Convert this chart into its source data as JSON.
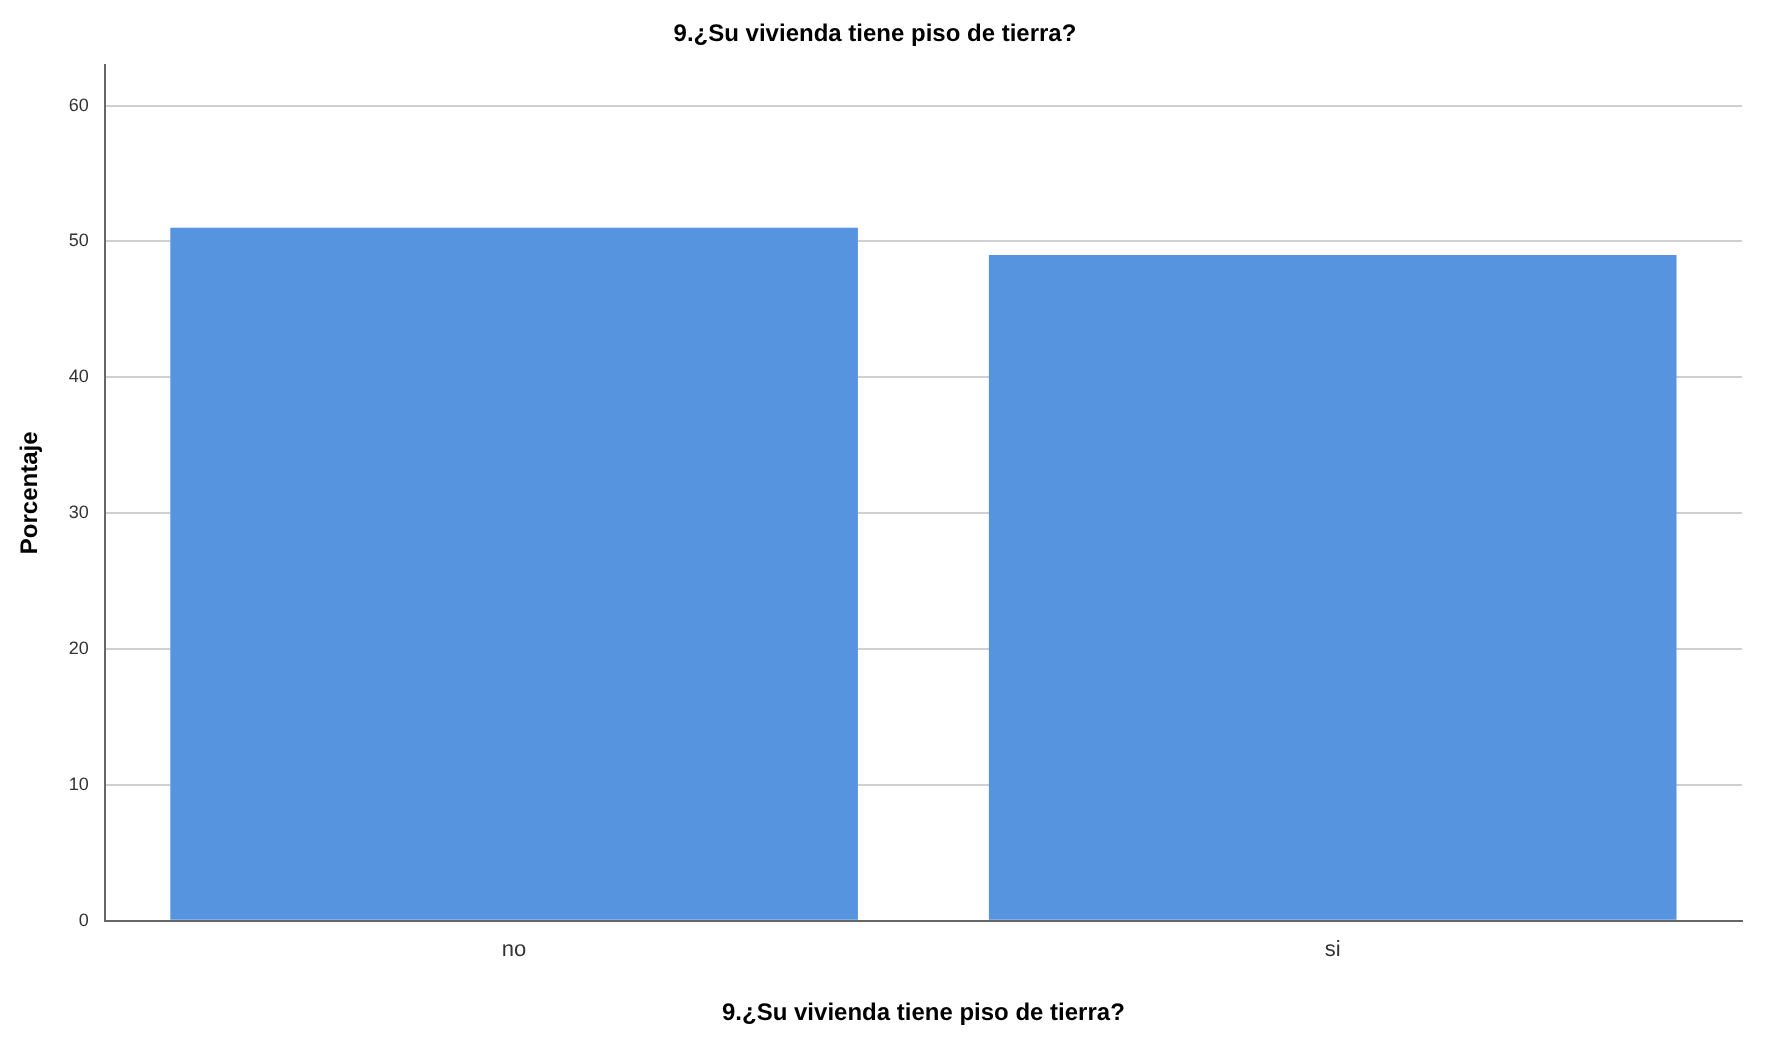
{
  "chart_data": {
    "type": "bar",
    "title": "9.¿Su vivienda tiene piso de tierra?",
    "xlabel": "9.¿Su vivienda tiene piso de tierra?",
    "ylabel": "Porcentaje",
    "categories": [
      "no",
      "si"
    ],
    "values": [
      51,
      49
    ],
    "color": "#5694e0",
    "ylim": [
      0,
      63
    ],
    "yticks": [
      0,
      10,
      20,
      30,
      40,
      50,
      60
    ],
    "grid": "y"
  }
}
